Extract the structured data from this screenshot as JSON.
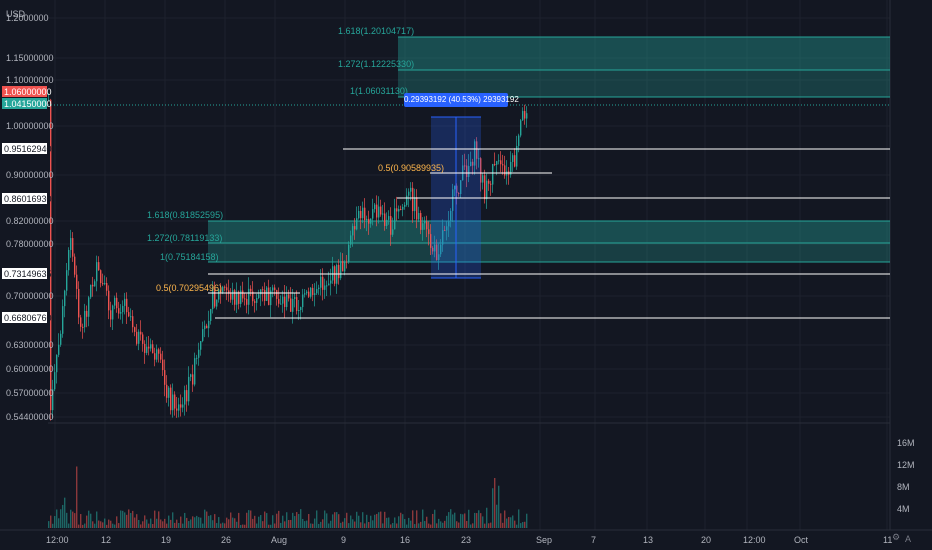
{
  "currency_label": "USD",
  "corner_label": "A",
  "price_axis": {
    "labels": [
      "1.2000000",
      "1.15000000",
      "1.10000000",
      "1.00000000",
      "0.90000000",
      "0.82000000",
      "0.78000000",
      "0.70000000",
      "0.63000000",
      "0.60000000",
      "0.57000000",
      "0.54400000"
    ],
    "tagged": [
      {
        "text": "1.06000000",
        "style": "red"
      },
      {
        "text": "1.04150000",
        "style": "teal"
      },
      {
        "text": "0.95162940",
        "style": "white"
      },
      {
        "text": "0.86016930",
        "style": "white"
      },
      {
        "text": "0.73149635",
        "style": "white"
      },
      {
        "text": "0.66806760",
        "style": "white"
      }
    ]
  },
  "volume_axis": {
    "labels": [
      "16M",
      "12M",
      "8M",
      "4M"
    ]
  },
  "time_axis": {
    "labels": [
      "12:00",
      "12",
      "19",
      "26",
      "Aug",
      "9",
      "16",
      "23",
      "Sep",
      "7",
      "13",
      "20",
      "12:00",
      "Oct",
      "11"
    ]
  },
  "fib_upper": {
    "levels": [
      {
        "text": "1.618(1.20104717)"
      },
      {
        "text": "1.272(1.12225330)"
      },
      {
        "text": "1(1.06031130)"
      },
      {
        "text": "0.5(0.90589935)"
      }
    ]
  },
  "fib_lower": {
    "levels": [
      {
        "text": "1.618(0.81852595)"
      },
      {
        "text": "1.272(0.78119133)"
      },
      {
        "text": "1(0.75184158)"
      },
      {
        "text": "0.5(0.70295496)"
      }
    ]
  },
  "measure_label": "0.29393192 (40.53%) 29393192",
  "colors": {
    "background": "#131722",
    "up": "#26a69a",
    "down": "#ef5350",
    "fib_fill": "#26a69a",
    "measure": "#2962ff",
    "half_level": "#ffb74d"
  },
  "chart_data": {
    "type": "candlestick",
    "series": [
      {
        "name": "price",
        "open_close_range": [
          0.544,
          1.06
        ]
      },
      {
        "name": "volume"
      }
    ],
    "last_price": 1.0415,
    "high_marker": 1.06
  }
}
